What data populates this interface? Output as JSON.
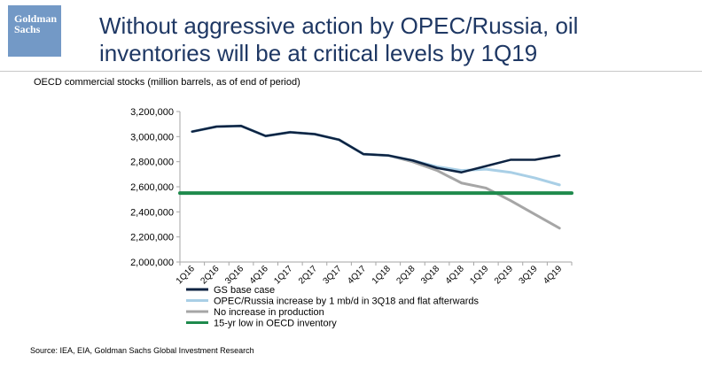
{
  "header": {
    "logo_line1": "Goldman",
    "logo_line2": "Sachs",
    "title_line1": "Without aggressive action by OPEC/Russia, oil",
    "title_line2": "inventories will be at critical levels by 1Q19"
  },
  "subtitle": "OECD commercial stocks (million barrels, as of end of period)",
  "footer": {
    "source": "Source: IEA, EIA, Goldman Sachs Global Investment Research"
  },
  "colors": {
    "gs_base": "#0d2342",
    "opec_increase": "#a9cfe6",
    "no_increase": "#a6a6a6",
    "low15yr": "#1e8a4c",
    "axis": "#a6a6a6",
    "title": "#1f3864",
    "logo_bg": "#7399c6"
  },
  "chart_data": {
    "type": "line",
    "title": "",
    "ylabel": "",
    "xlabel": "",
    "ylim": [
      2000000,
      3200000
    ],
    "y_ticks": [
      {
        "value": 2000000,
        "label": "2,000,000"
      },
      {
        "value": 2200000,
        "label": "2,200,000"
      },
      {
        "value": 2400000,
        "label": "2,400,000"
      },
      {
        "value": 2600000,
        "label": "2,600,000"
      },
      {
        "value": 2800000,
        "label": "2,800,000"
      },
      {
        "value": 3000000,
        "label": "3,000,000"
      },
      {
        "value": 3200000,
        "label": "3,200,000"
      }
    ],
    "categories": [
      "1Q16",
      "2Q16",
      "3Q16",
      "4Q16",
      "1Q17",
      "2Q17",
      "3Q17",
      "4Q17",
      "1Q18",
      "2Q18",
      "3Q18",
      "4Q18",
      "1Q19",
      "2Q19",
      "3Q19",
      "4Q19"
    ],
    "series": [
      {
        "key": "gs_base",
        "name": "GS base case",
        "values": [
          3040000,
          3080000,
          3085000,
          3005000,
          3035000,
          3020000,
          2975000,
          2860000,
          2850000,
          2810000,
          2750000,
          2715000,
          2765000,
          2815000,
          2815000,
          2850000
        ]
      },
      {
        "key": "opec_increase",
        "name": "OPEC/Russia increase by 1 mb/d in 3Q18 and flat afterwards",
        "values": [
          3040000,
          3080000,
          3085000,
          3005000,
          3035000,
          3020000,
          2975000,
          2860000,
          2850000,
          2810000,
          2760000,
          2730000,
          2740000,
          2715000,
          2670000,
          2615000
        ]
      },
      {
        "key": "no_increase",
        "name": "No increase in production",
        "values": [
          3040000,
          3080000,
          3085000,
          3005000,
          3035000,
          3020000,
          2975000,
          2860000,
          2850000,
          2800000,
          2730000,
          2630000,
          2590000,
          2490000,
          2380000,
          2270000
        ]
      },
      {
        "key": "low15yr",
        "name": "15-yr low in OECD inventory",
        "values": [
          2550000,
          2550000,
          2550000,
          2550000,
          2550000,
          2550000,
          2550000,
          2550000,
          2550000,
          2550000,
          2550000,
          2550000,
          2550000,
          2550000,
          2550000,
          2550000
        ]
      }
    ],
    "legend_position": "bottom-left",
    "grid": false
  }
}
